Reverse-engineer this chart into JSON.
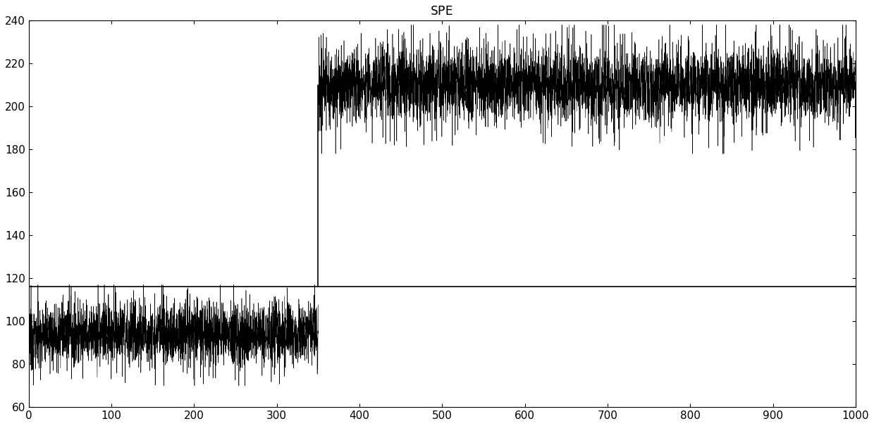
{
  "title": "SPE",
  "xlim": [
    0,
    1000
  ],
  "ylim": [
    60,
    240
  ],
  "xticks": [
    0,
    100,
    200,
    300,
    400,
    500,
    600,
    700,
    800,
    900,
    1000
  ],
  "yticks": [
    60,
    80,
    100,
    120,
    140,
    160,
    180,
    200,
    220,
    240
  ],
  "threshold_y": 116,
  "transition_x": 350,
  "phase1_mean": 94,
  "phase1_std": 7,
  "phase2_mean": 210,
  "phase2_std": 8,
  "phase1_end": 350,
  "phase2_start": 350,
  "n_total": 1000,
  "samples_per_x": 8,
  "line_color": "#000000",
  "bg_color": "#ffffff",
  "title_fontsize": 13,
  "tick_fontsize": 11
}
